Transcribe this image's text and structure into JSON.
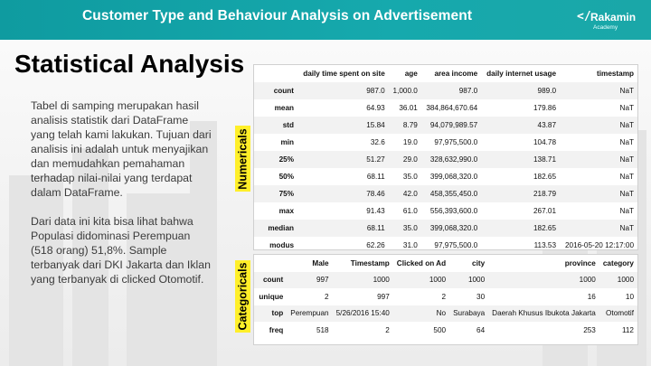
{
  "header": {
    "title": "Customer Type and Behaviour Analysis on Advertisement"
  },
  "logo": {
    "mark": "</",
    "brand": "Rakamin",
    "sub": "Academy"
  },
  "slide": {
    "title": "Statistical Analysis",
    "paragraphs": [
      "Tabel di samping merupakan hasil analisis statistik dari DataFrame yang telah kami lakukan. Tujuan dari analisis ini adalah untuk menyajikan dan memudahkan pemahaman terhadap nilai-nilai yang terdapat dalam DataFrame.",
      "Dari  data ini kita bisa lihat bahwa Populasi didominasi Perempuan (518 orang) 51,8%. Sample terbanyak dari DKI Jakarta dan Iklan yang terbanyak di clicked Otomotif."
    ]
  },
  "labels": {
    "numericals": "Numericals",
    "categoricals": "Categoricals"
  },
  "numerical_table": {
    "columns": [
      "",
      "daily time spent on site",
      "age",
      "area income",
      "daily internet usage",
      "timestamp"
    ],
    "rows": [
      [
        "count",
        "987.0",
        "1,000.0",
        "987.0",
        "989.0",
        "NaT"
      ],
      [
        "mean",
        "64.93",
        "36.01",
        "384,864,670.64",
        "179.86",
        "NaT"
      ],
      [
        "std",
        "15.84",
        "8.79",
        "94,079,989.57",
        "43.87",
        "NaT"
      ],
      [
        "min",
        "32.6",
        "19.0",
        "97,975,500.0",
        "104.78",
        "NaT"
      ],
      [
        "25%",
        "51.27",
        "29.0",
        "328,632,990.0",
        "138.71",
        "NaT"
      ],
      [
        "50%",
        "68.11",
        "35.0",
        "399,068,320.0",
        "182.65",
        "NaT"
      ],
      [
        "75%",
        "78.46",
        "42.0",
        "458,355,450.0",
        "218.79",
        "NaT"
      ],
      [
        "max",
        "91.43",
        "61.0",
        "556,393,600.0",
        "267.01",
        "NaT"
      ],
      [
        "median",
        "68.11",
        "35.0",
        "399,068,320.0",
        "182.65",
        "NaT"
      ],
      [
        "modus",
        "62.26",
        "31.0",
        "97,975,500.0",
        "113.53",
        "2016-05-20 12:17:00"
      ]
    ]
  },
  "categorical_table": {
    "columns": [
      "",
      "Male",
      "Timestamp",
      "Clicked on Ad",
      "city",
      "province",
      "category"
    ],
    "rows": [
      [
        "count",
        "997",
        "1000",
        "1000",
        "1000",
        "1000",
        "1000"
      ],
      [
        "unique",
        "2",
        "997",
        "2",
        "30",
        "16",
        "10"
      ],
      [
        "top",
        "Perempuan",
        "5/26/2016 15:40",
        "No",
        "Surabaya",
        "Daerah Khusus Ibukota Jakarta",
        "Otomotif"
      ],
      [
        "freq",
        "518",
        "2",
        "500",
        "64",
        "253",
        "112"
      ]
    ]
  }
}
